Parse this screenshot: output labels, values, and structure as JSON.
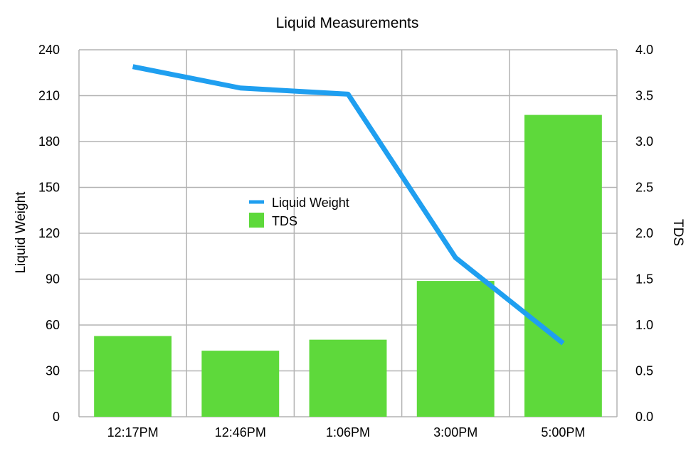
{
  "chart_data": {
    "type": "bar+line",
    "title": "Liquid Measurements",
    "categories": [
      "12:17PM",
      "12:46PM",
      "1:06PM",
      "3:00PM",
      "5:00PM"
    ],
    "series": [
      {
        "name": "Liquid Weight",
        "type": "line",
        "axis": "left",
        "color": "#1f9ff0",
        "values": [
          229,
          215,
          211,
          104,
          48
        ]
      },
      {
        "name": "TDS",
        "type": "bar",
        "axis": "right",
        "color": "#5ed93b",
        "values": [
          0.88,
          0.72,
          0.84,
          1.48,
          3.29
        ]
      }
    ],
    "ylabel": "Liquid Weight",
    "y2label": "TDS",
    "ylim": [
      0,
      240
    ],
    "y2lim": [
      0,
      4.0
    ],
    "yticks": [
      "0",
      "30",
      "60",
      "90",
      "120",
      "150",
      "180",
      "210",
      "240"
    ],
    "y2ticks": [
      "0.0",
      "0.5",
      "1.0",
      "1.5",
      "2.0",
      "2.5",
      "3.0",
      "3.5",
      "4.0"
    ],
    "grid": true,
    "legend_position": "center-left"
  }
}
